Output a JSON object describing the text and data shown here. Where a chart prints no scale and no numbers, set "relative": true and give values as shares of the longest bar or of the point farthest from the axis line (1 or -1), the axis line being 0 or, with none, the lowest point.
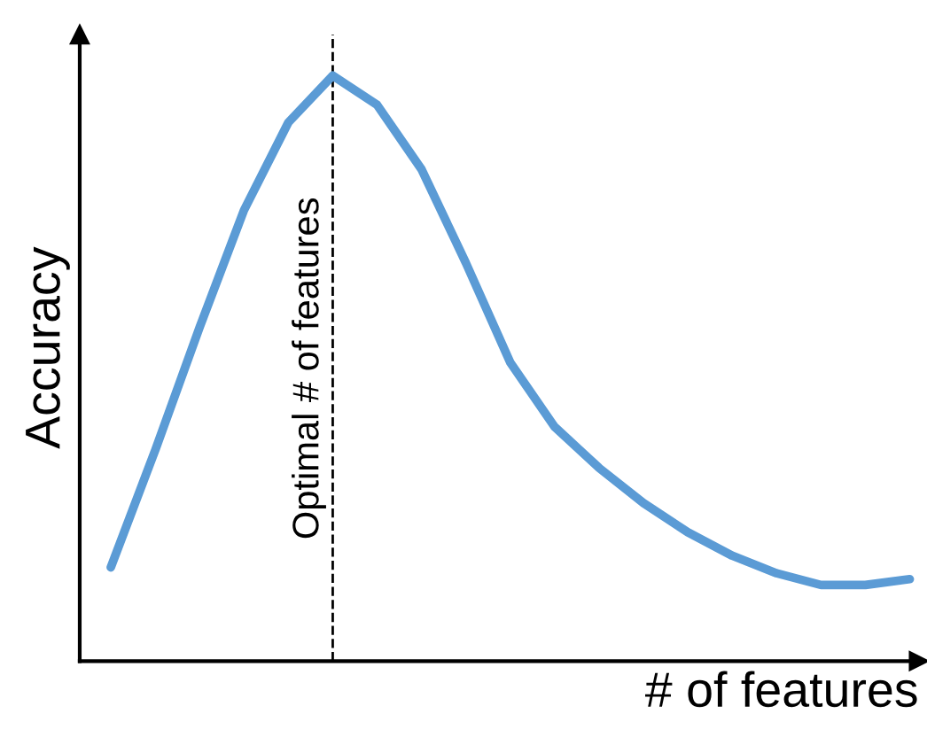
{
  "chart_data": {
    "type": "line",
    "xlabel": "# of features",
    "ylabel": "Accuracy",
    "relative": true,
    "categories": [
      null,
      null,
      null,
      null,
      null,
      null,
      null,
      null,
      null,
      null,
      null,
      null,
      null,
      null,
      null,
      null,
      null,
      null,
      null
    ],
    "series": [
      {
        "color": "#5b9bd5",
        "values": [
          0.16,
          0.36,
          0.57,
          0.77,
          0.92,
          1.0,
          0.95,
          0.84,
          0.68,
          0.51,
          0.4,
          0.33,
          0.27,
          0.22,
          0.18,
          0.15,
          0.13,
          0.13,
          0.14
        ]
      }
    ],
    "annotations": [
      "Optimal # of features"
    ],
    "tick_labels": false,
    "legend": false,
    "marker": "none",
    "line_style": "solid"
  }
}
